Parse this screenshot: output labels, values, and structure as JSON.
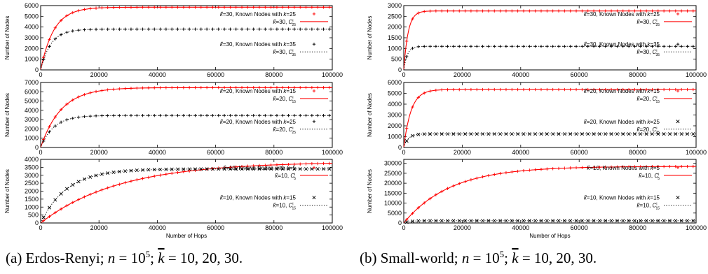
{
  "captions": {
    "left": {
      "prefix": "(a) Erdos-Renyi; ",
      "n": "n",
      "eq": " = 10",
      "exp": "5",
      "sep": "; ",
      "k": "k",
      "tail": " = 10, 20, 30."
    },
    "right": {
      "prefix": "(b) Small-world; ",
      "n": "n",
      "eq": " = 10",
      "exp": "5",
      "sep": "; ",
      "k": "k",
      "tail": " = 10, 20, 30."
    }
  },
  "style": {
    "red": "#ff0000",
    "black": "#000000"
  },
  "chart_data": [
    {
      "id": "er-k30",
      "type": "line",
      "column": "left",
      "row": 0,
      "xlabel": "",
      "ylabel": "Number of Nodes",
      "xlim": [
        0,
        100000
      ],
      "ylim": [
        0,
        6000
      ],
      "xticks": [
        0,
        20000,
        40000,
        60000,
        80000,
        100000
      ],
      "yticks": [
        0,
        1000,
        2000,
        3000,
        4000,
        5000,
        6000
      ],
      "series": [
        {
          "name": "k̂=30, Known Nodes with k=25",
          "kind": "plus",
          "color": "red",
          "asymptote": 5850,
          "tau": 4500
        },
        {
          "name": "k̂=30, C_25^i",
          "kind": "solid",
          "color": "red",
          "asymptote": 5850,
          "tau": 4500
        },
        {
          "name": "k̂=30, Known Nodes with k=35",
          "kind": "plus",
          "color": "black",
          "asymptote": 3800,
          "tau": 3500
        },
        {
          "name": "k̂=30, C_35^i",
          "kind": "dotted",
          "color": "black",
          "asymptote": 3800,
          "tau": 3500
        }
      ]
    },
    {
      "id": "er-k20",
      "type": "line",
      "column": "left",
      "row": 1,
      "xlabel": "",
      "ylabel": "Number of Nodes",
      "xlim": [
        0,
        100000
      ],
      "ylim": [
        0,
        7000
      ],
      "xticks": [
        0,
        20000,
        40000,
        60000,
        80000,
        100000
      ],
      "yticks": [
        0,
        1000,
        2000,
        3000,
        4000,
        5000,
        6000,
        7000
      ],
      "series": [
        {
          "name": "k̂=20, Known Nodes with k=15",
          "kind": "plus",
          "color": "red",
          "asymptote": 6450,
          "tau": 7000
        },
        {
          "name": "k̂=20, C_15^i",
          "kind": "solid",
          "color": "red",
          "asymptote": 6450,
          "tau": 7000
        },
        {
          "name": "k̂=20, Known Nodes with k=25",
          "kind": "plus",
          "color": "black",
          "asymptote": 3450,
          "tau": 4500
        },
        {
          "name": "k̂=20, C_25^i",
          "kind": "dotted",
          "color": "black",
          "asymptote": 3450,
          "tau": 4500
        }
      ]
    },
    {
      "id": "er-k10",
      "type": "line",
      "column": "left",
      "row": 2,
      "xlabel": "Number of Hops",
      "ylabel": "Number of Nodes",
      "xlim": [
        0,
        100000
      ],
      "ylim": [
        0,
        4000
      ],
      "xticks": [
        0,
        20000,
        40000,
        60000,
        80000,
        100000
      ],
      "yticks": [
        0,
        500,
        1000,
        1500,
        2000,
        2500,
        3000,
        3500,
        4000
      ],
      "series": [
        {
          "name": "k̂=10, Known Nodes with k=5",
          "kind": "plus",
          "color": "red",
          "asymptote": 3850,
          "tau": 27000
        },
        {
          "name": "k̂=10, C_5^i",
          "kind": "solid",
          "color": "red",
          "asymptote": 3850,
          "tau": 27000
        },
        {
          "name": "k̂=10, Known Nodes with k=15",
          "kind": "cross",
          "color": "black",
          "asymptote": 3400,
          "tau": 9000
        },
        {
          "name": "k̂=10, C_15^i",
          "kind": "dotted",
          "color": "black",
          "asymptote": 3400,
          "tau": 9000
        }
      ]
    },
    {
      "id": "sw-k30",
      "type": "line",
      "column": "right",
      "row": 0,
      "xlabel": "",
      "ylabel": "Number of Nodes",
      "xlim": [
        0,
        100000
      ],
      "ylim": [
        0,
        3000
      ],
      "xticks": [
        0,
        20000,
        40000,
        60000,
        80000,
        100000
      ],
      "yticks": [
        0,
        500,
        1000,
        1500,
        2000,
        2500,
        3000
      ],
      "series": [
        {
          "name": "k̂=30, Known Nodes with k=25",
          "kind": "plus",
          "color": "red",
          "asymptote": 2750,
          "tau": 1500
        },
        {
          "name": "k̂=30, C_25^i",
          "kind": "solid",
          "color": "red",
          "asymptote": 2750,
          "tau": 1500
        },
        {
          "name": "k̂=30, Known Nodes with k=35",
          "kind": "plus",
          "color": "black",
          "asymptote": 1100,
          "tau": 1200
        },
        {
          "name": "k̂=30, C_35^i",
          "kind": "dotted",
          "color": "black",
          "asymptote": 1100,
          "tau": 1200
        }
      ]
    },
    {
      "id": "sw-k20",
      "type": "line",
      "column": "right",
      "row": 1,
      "xlabel": "",
      "ylabel": "Number of Nodes",
      "xlim": [
        0,
        100000
      ],
      "ylim": [
        0,
        6000
      ],
      "xticks": [
        0,
        20000,
        40000,
        60000,
        80000,
        100000
      ],
      "yticks": [
        0,
        1000,
        2000,
        3000,
        4000,
        5000,
        6000
      ],
      "series": [
        {
          "name": "k̂=20, Known Nodes with k=15",
          "kind": "plus",
          "color": "red",
          "asymptote": 5350,
          "tau": 2500
        },
        {
          "name": "k̂=20, C_15^i",
          "kind": "solid",
          "color": "red",
          "asymptote": 5350,
          "tau": 2500
        },
        {
          "name": "k̂=20, Known Nodes with k=25",
          "kind": "cross",
          "color": "black",
          "asymptote": 1250,
          "tau": 1500
        },
        {
          "name": "k̂=20, C_25^i",
          "kind": "dotted",
          "color": "black",
          "asymptote": 1250,
          "tau": 1500
        }
      ]
    },
    {
      "id": "sw-k10",
      "type": "line",
      "column": "right",
      "row": 2,
      "xlabel": "Number of Hops",
      "ylabel": "Number of Nodes",
      "xlim": [
        0,
        100000
      ],
      "ylim": [
        0,
        32000
      ],
      "xticks": [
        0,
        20000,
        40000,
        60000,
        80000,
        100000
      ],
      "yticks": [
        0,
        5000,
        10000,
        15000,
        20000,
        25000,
        30000
      ],
      "series": [
        {
          "name": "k̂=10, Known Nodes with k=5",
          "kind": "plus",
          "color": "red",
          "asymptote": 28500,
          "tau": 16000
        },
        {
          "name": "k̂=10, C_5^i",
          "kind": "solid",
          "color": "red",
          "asymptote": 28500,
          "tau": 16000
        },
        {
          "name": "k̂=10, Known Nodes with k=15",
          "kind": "cross",
          "color": "black",
          "asymptote": 1150,
          "tau": 2000
        },
        {
          "name": "k̂=10, C_15^i",
          "kind": "dotted",
          "color": "black",
          "asymptote": 1150,
          "tau": 2000
        }
      ]
    }
  ]
}
